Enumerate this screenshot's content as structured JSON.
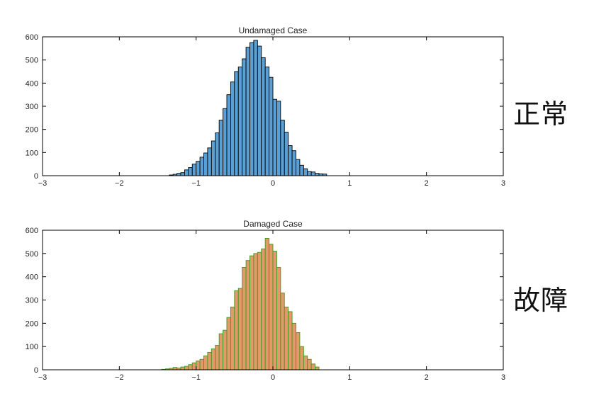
{
  "chart_data": [
    {
      "type": "bar",
      "title": "Undamaged Case",
      "side_label": "正常",
      "bar_color": "#5aa0d4",
      "edge_color": "#000000",
      "xlim": [
        -3,
        3
      ],
      "ylim": [
        0,
        600
      ],
      "xticks": [
        "−3",
        "−2",
        "−1",
        "0",
        "1",
        "2",
        "3"
      ],
      "xtick_values": [
        -3,
        -2,
        -1,
        0,
        1,
        2,
        3
      ],
      "yticks": [
        "0",
        "100",
        "200",
        "300",
        "400",
        "500",
        "600"
      ],
      "ytick_values": [
        0,
        100,
        200,
        300,
        400,
        500,
        600
      ],
      "bin_width": 0.05,
      "bin_start": -1.35,
      "values": [
        3,
        6,
        10,
        13,
        25,
        35,
        50,
        62,
        80,
        98,
        120,
        150,
        185,
        240,
        290,
        350,
        405,
        450,
        470,
        505,
        555,
        575,
        585,
        560,
        510,
        470,
        425,
        330,
        322,
        240,
        188,
        130,
        108,
        70,
        45,
        30,
        18,
        16,
        10,
        8,
        7
      ]
    },
    {
      "type": "bar",
      "title": "Damaged Case",
      "side_label": "故障",
      "bar_color": "#e29a6a",
      "edge_color": "#3d9a1c",
      "xlim": [
        -3,
        3
      ],
      "ylim": [
        0,
        600
      ],
      "xticks": [
        "−3",
        "−2",
        "−1",
        "0",
        "1",
        "2",
        "3"
      ],
      "xtick_values": [
        -3,
        -2,
        -1,
        0,
        1,
        2,
        3
      ],
      "yticks": [
        "0",
        "100",
        "200",
        "300",
        "400",
        "500",
        "600"
      ],
      "ytick_values": [
        0,
        100,
        200,
        300,
        400,
        500,
        600
      ],
      "bin_width": 0.05,
      "bin_start": -1.45,
      "values": [
        2,
        4,
        6,
        10,
        8,
        12,
        15,
        22,
        30,
        38,
        45,
        60,
        75,
        90,
        105,
        155,
        170,
        225,
        270,
        340,
        350,
        440,
        470,
        490,
        500,
        505,
        520,
        565,
        540,
        510,
        440,
        330,
        270,
        250,
        200,
        160,
        100,
        60,
        45,
        25,
        12
      ]
    }
  ]
}
